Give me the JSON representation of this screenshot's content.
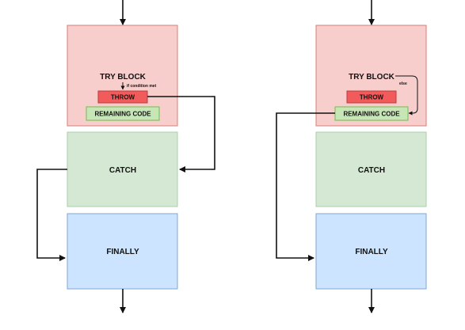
{
  "colors": {
    "try_fill": "#f8cecc",
    "try_stroke": "#d87e7a",
    "throw_fill": "#f25b5b",
    "throw_stroke": "#b83c3c",
    "remaining_fill": "#c6e6b5",
    "remaining_stroke": "#6fbf4f",
    "catch_fill": "#d5e8d4",
    "catch_stroke": "#a9cfa7",
    "finally_fill": "#cce4ff",
    "finally_stroke": "#7ea7d2",
    "line": "#111111"
  },
  "left_diagram": {
    "try_label": "TRY BLOCK",
    "throw_label": "THROW",
    "remaining_label": "REMAINING CODE",
    "condition_label": "if condition met",
    "catch_label": "CATCH",
    "finally_label": "FINALLY"
  },
  "right_diagram": {
    "try_label": "TRY BLOCK",
    "throw_label": "THROW",
    "remaining_label": "REMAINING CODE",
    "else_label": "else",
    "catch_label": "CATCH",
    "finally_label": "FINALLY"
  }
}
